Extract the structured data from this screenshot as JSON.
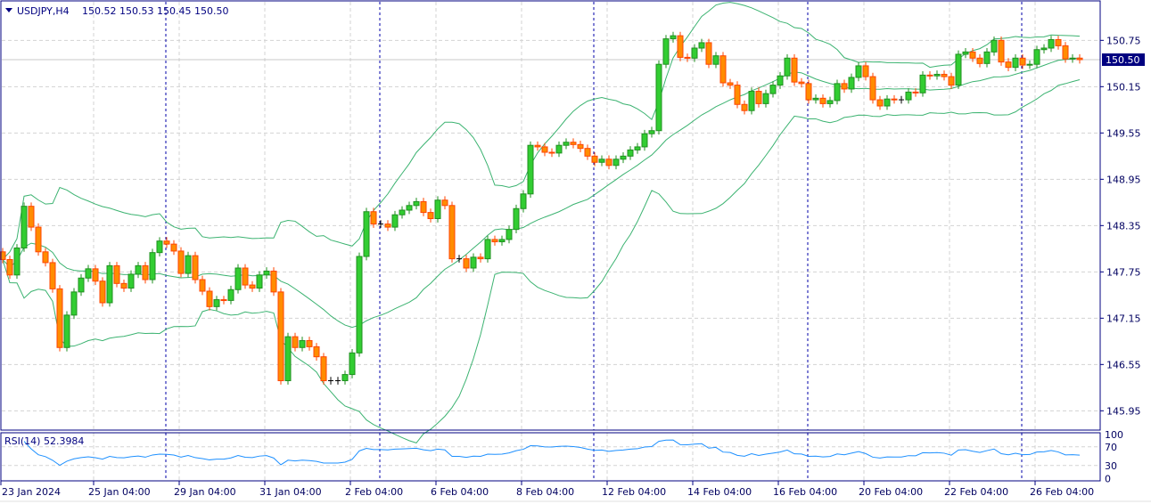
{
  "header": {
    "symbol": "USDJPY,H4",
    "ohlc": "150.52 150.53 150.45 150.50"
  },
  "rsi": {
    "label": "RSI(14) 52.3984",
    "levels": [
      "100",
      "70",
      "30",
      "0"
    ]
  },
  "colors": {
    "bull": "#32cd32",
    "bull_border": "#1f8f1f",
    "bear": "#ff8c00",
    "bear_border": "#ff4500",
    "bands": "#3cb371",
    "rsi_line": "#1e90ff",
    "grid": "#d3d3d3",
    "axis": "#000080",
    "separator": "#0000aa",
    "price_tag": "#000080"
  },
  "chart_data": {
    "type": "candlestick",
    "symbol": "USDJPY",
    "timeframe": "H4",
    "current_price": "150.50",
    "y_ticks": [
      "150.75",
      "150.15",
      "149.55",
      "148.95",
      "148.35",
      "147.75",
      "147.15",
      "146.55",
      "145.95"
    ],
    "ylim": [
      145.7,
      151.25
    ],
    "x_ticks": [
      "23 Jan 2024",
      "25 Jan 04:00",
      "29 Jan 04:00",
      "31 Jan 04:00",
      "2 Feb 04:00",
      "6 Feb 04:00",
      "8 Feb 04:00",
      "12 Feb 04:00",
      "14 Feb 04:00",
      "16 Feb 04:00",
      "20 Feb 04:00",
      "22 Feb 04:00",
      "26 Feb 04:00"
    ],
    "indicators": [
      "Bollinger Bands",
      "RSI(14)"
    ],
    "grid": true,
    "close": [
      147.91,
      147.71,
      148.06,
      148.6,
      148.33,
      148.01,
      147.87,
      147.53,
      146.77,
      147.19,
      147.49,
      147.67,
      147.79,
      147.63,
      147.35,
      147.83,
      147.6,
      147.54,
      147.72,
      147.83,
      147.65,
      148.0,
      148.15,
      148.11,
      148.02,
      147.73,
      147.96,
      147.65,
      147.5,
      147.3,
      147.39,
      147.38,
      147.52,
      147.8,
      147.58,
      147.54,
      147.71,
      147.76,
      147.49,
      146.34,
      146.91,
      146.77,
      146.86,
      146.78,
      146.65,
      146.34,
      146.34,
      146.34,
      146.42,
      146.7,
      147.95,
      148.53,
      148.37,
      148.37,
      148.33,
      148.49,
      148.55,
      148.61,
      148.66,
      148.52,
      148.44,
      148.68,
      148.61,
      147.92,
      147.92,
      147.8,
      147.94,
      147.92,
      148.17,
      148.14,
      148.17,
      148.3,
      148.57,
      148.76,
      149.39,
      149.37,
      149.3,
      149.29,
      149.39,
      149.43,
      149.4,
      149.35,
      149.25,
      149.17,
      149.21,
      149.13,
      149.21,
      149.25,
      149.33,
      149.37,
      149.54,
      149.58,
      150.44,
      150.77,
      150.81,
      150.53,
      150.52,
      150.65,
      150.72,
      150.44,
      150.55,
      150.2,
      150.17,
      149.92,
      149.84,
      150.09,
      149.93,
      150.06,
      150.17,
      150.29,
      150.52,
      150.21,
      150.19,
      149.98,
      150.0,
      149.93,
      149.97,
      150.19,
      150.12,
      150.27,
      150.42,
      150.28,
      149.98,
      149.9,
      149.99,
      149.98,
      149.98,
      150.08,
      150.07,
      150.3,
      150.29,
      150.31,
      150.28,
      150.17,
      150.57,
      150.6,
      150.52,
      150.45,
      150.6,
      150.75,
      150.47,
      150.4,
      150.52,
      150.43,
      150.44,
      150.63,
      150.65,
      150.76,
      150.68,
      150.51,
      150.52,
      150.5
    ]
  }
}
